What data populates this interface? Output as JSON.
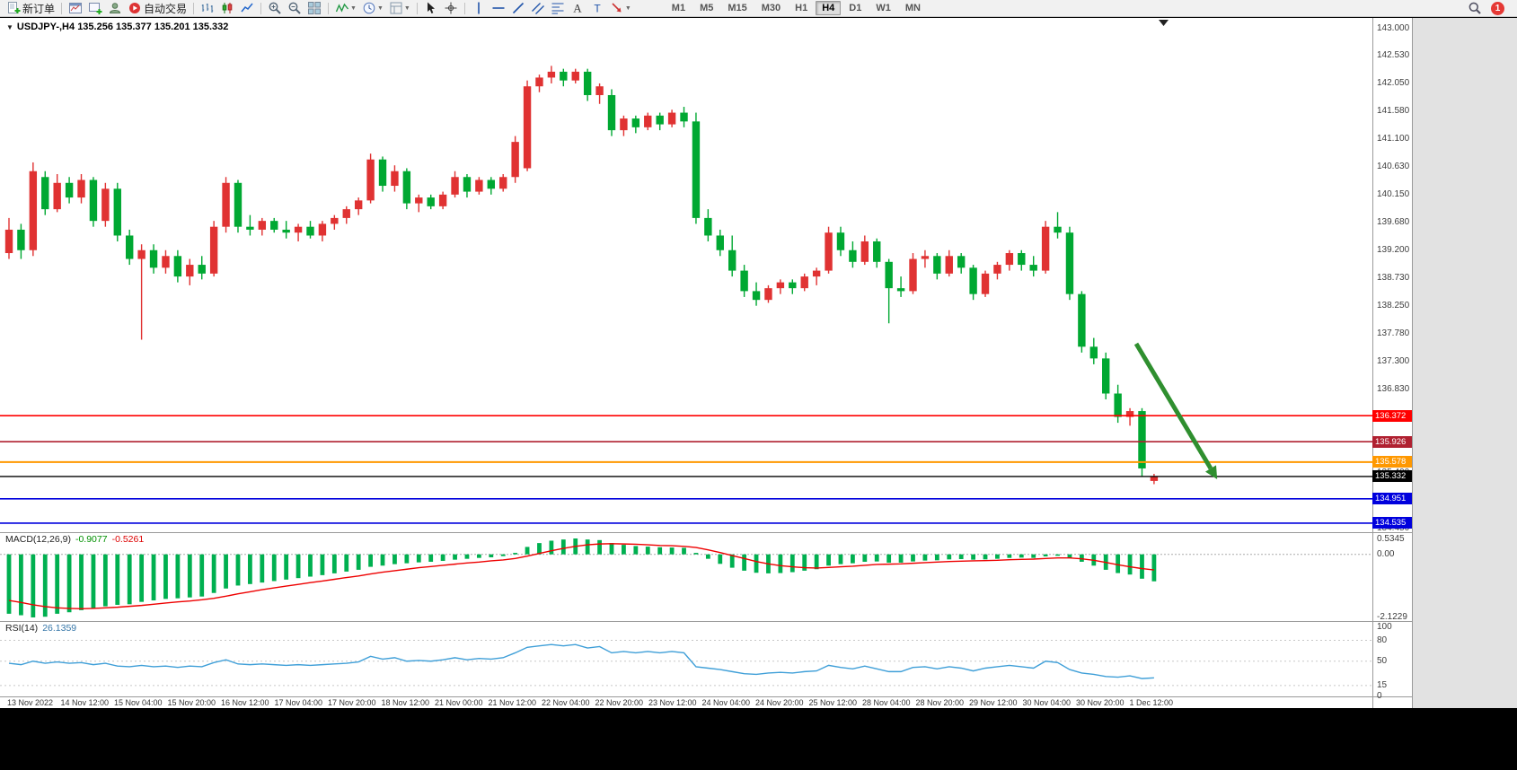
{
  "toolbar": {
    "groups": [
      {
        "items": [
          {
            "name": "new-order-button",
            "icon": "doc-plus",
            "label": "新订单"
          }
        ]
      },
      {
        "items": [
          {
            "name": "charts-button",
            "icon": "chart-window"
          },
          {
            "name": "new-chart-button",
            "icon": "chart-plus"
          },
          {
            "name": "profiles-button",
            "icon": "profile"
          },
          {
            "name": "autotrading-button",
            "icon": "play-red",
            "label": "自动交易"
          }
        ]
      },
      {
        "items": [
          {
            "name": "bar-chart-button",
            "icon": "bars"
          },
          {
            "name": "candlestick-chart-button",
            "icon": "candles"
          },
          {
            "name": "line-chart-button",
            "icon": "linechart"
          }
        ]
      },
      {
        "items": [
          {
            "name": "zoom-in-button",
            "icon": "zoom-in"
          },
          {
            "name": "zoom-out-button",
            "icon": "zoom-out"
          },
          {
            "name": "tile-windows-button",
            "icon": "tile"
          }
        ]
      },
      {
        "items": [
          {
            "name": "indicators-button",
            "icon": "indicator",
            "dropdown": true
          },
          {
            "name": "periods-button",
            "icon": "clock",
            "dropdown": true
          },
          {
            "name": "templates-button",
            "icon": "template",
            "dropdown": true
          }
        ]
      },
      {
        "items": [
          {
            "name": "cursor-button",
            "icon": "cursor"
          },
          {
            "name": "crosshair-button",
            "icon": "crosshair"
          }
        ]
      },
      {
        "items": [
          {
            "name": "vertical-line-button",
            "icon": "vline"
          },
          {
            "name": "horizontal-line-button",
            "icon": "hline"
          },
          {
            "name": "trendline-button",
            "icon": "tline"
          },
          {
            "name": "equidistant-channel-button",
            "icon": "channel"
          },
          {
            "name": "fibonacci-button",
            "icon": "fibo"
          },
          {
            "name": "text-button",
            "icon": "textA"
          },
          {
            "name": "text-label-button",
            "icon": "textT"
          },
          {
            "name": "arrows-button",
            "icon": "arrow-obj",
            "dropdown": true
          }
        ]
      }
    ],
    "timeframes": [
      "M1",
      "M5",
      "M15",
      "M30",
      "H1",
      "H4",
      "D1",
      "W1",
      "MN"
    ],
    "active_timeframe": "H4",
    "notification_count": "1"
  },
  "chart": {
    "title_symbol": "USDJPY-,H4",
    "title_ohlc": "135.256 135.377 135.201 135.332"
  },
  "indicator_labels": {
    "macd_name": "MACD(12,26,9)",
    "macd_v1": "-0.9077",
    "macd_v2": "-0.5261",
    "rsi_name": "RSI(14)",
    "rsi_v": "26.1359"
  },
  "chart_data": {
    "type": "candlestick",
    "symbol": "USDJPY-",
    "timeframe": "H4",
    "ohlc_display": {
      "open": "135.256",
      "high": "135.377",
      "low": "135.201",
      "close": "135.332"
    },
    "up_color": "#e03232",
    "down_color": "#00a832",
    "price_axis_labels": [
      "143.000",
      "142.530",
      "142.050",
      "141.580",
      "141.100",
      "140.630",
      "140.150",
      "139.680",
      "139.200",
      "138.730",
      "138.250",
      "137.780",
      "137.300",
      "136.830",
      "136.350",
      "135.880",
      "135.400",
      "134.930",
      "134.450"
    ],
    "time_labels": [
      "13 Nov 2022",
      "14 Nov 12:00",
      "15 Nov 04:00",
      "15 Nov 20:00",
      "16 Nov 12:00",
      "17 Nov 04:00",
      "17 Nov 20:00",
      "18 Nov 12:00",
      "21 Nov 00:00",
      "21 Nov 12:00",
      "22 Nov 04:00",
      "22 Nov 20:00",
      "23 Nov 12:00",
      "24 Nov 04:00",
      "24 Nov 20:00",
      "25 Nov 12:00",
      "28 Nov 04:00",
      "28 Nov 20:00",
      "29 Nov 12:00",
      "30 Nov 04:00",
      "30 Nov 20:00",
      "1 Dec 12:00"
    ],
    "horizontal_lines": [
      {
        "price": 136.372,
        "color": "#ff0000",
        "label": "136.372",
        "width": 1.6
      },
      {
        "price": 135.926,
        "color": "#b02030",
        "label": "135.926",
        "width": 1.6
      },
      {
        "price": 135.578,
        "color": "#ff9800",
        "label": "135.578",
        "width": 2
      },
      {
        "price": 135.332,
        "color": "#000000",
        "label": "135.332",
        "width": 1.4
      },
      {
        "price": 134.951,
        "color": "#0000dd",
        "label": "134.951",
        "width": 1.6
      },
      {
        "price": 134.535,
        "color": "#0000dd",
        "label": "134.535",
        "width": 1.6
      }
    ],
    "candles": [
      [
        139.15,
        139.75,
        139.05,
        139.55
      ],
      [
        139.55,
        139.65,
        139.05,
        139.2
      ],
      [
        139.2,
        140.7,
        139.1,
        140.55
      ],
      [
        140.45,
        140.55,
        139.8,
        139.9
      ],
      [
        139.9,
        140.5,
        139.85,
        140.35
      ],
      [
        140.35,
        140.45,
        140.0,
        140.1
      ],
      [
        140.1,
        140.5,
        140.0,
        140.4
      ],
      [
        140.4,
        140.45,
        139.6,
        139.7
      ],
      [
        139.7,
        140.35,
        139.6,
        140.25
      ],
      [
        140.25,
        140.35,
        139.35,
        139.45
      ],
      [
        139.45,
        139.55,
        138.95,
        139.05
      ],
      [
        139.05,
        139.3,
        137.67,
        139.2
      ],
      [
        139.2,
        139.3,
        138.8,
        138.9
      ],
      [
        138.9,
        139.2,
        138.8,
        139.1
      ],
      [
        139.1,
        139.2,
        138.65,
        138.75
      ],
      [
        138.75,
        139.05,
        138.6,
        138.95
      ],
      [
        138.95,
        139.1,
        138.7,
        138.8
      ],
      [
        138.8,
        139.7,
        138.75,
        139.6
      ],
      [
        139.6,
        140.45,
        139.5,
        140.35
      ],
      [
        140.35,
        140.4,
        139.5,
        139.6
      ],
      [
        139.6,
        139.8,
        139.45,
        139.55
      ],
      [
        139.55,
        139.75,
        139.45,
        139.7
      ],
      [
        139.7,
        139.75,
        139.5,
        139.55
      ],
      [
        139.55,
        139.7,
        139.4,
        139.5
      ],
      [
        139.5,
        139.65,
        139.35,
        139.6
      ],
      [
        139.6,
        139.7,
        139.4,
        139.45
      ],
      [
        139.45,
        139.7,
        139.35,
        139.65
      ],
      [
        139.65,
        139.8,
        139.55,
        139.75
      ],
      [
        139.75,
        139.95,
        139.65,
        139.9
      ],
      [
        139.9,
        140.1,
        139.8,
        140.05
      ],
      [
        140.05,
        140.85,
        140.0,
        140.75
      ],
      [
        140.75,
        140.8,
        140.2,
        140.3
      ],
      [
        140.3,
        140.65,
        140.2,
        140.55
      ],
      [
        140.55,
        140.6,
        139.9,
        140.0
      ],
      [
        140.0,
        140.15,
        139.85,
        140.1
      ],
      [
        140.1,
        140.15,
        139.9,
        139.95
      ],
      [
        139.95,
        140.2,
        139.9,
        140.15
      ],
      [
        140.15,
        140.55,
        140.1,
        140.45
      ],
      [
        140.45,
        140.5,
        140.1,
        140.2
      ],
      [
        140.2,
        140.45,
        140.15,
        140.4
      ],
      [
        140.4,
        140.45,
        140.15,
        140.25
      ],
      [
        140.25,
        140.5,
        140.2,
        140.45
      ],
      [
        140.45,
        141.15,
        140.35,
        141.05
      ],
      [
        140.6,
        142.1,
        140.55,
        142.0
      ],
      [
        142.0,
        142.2,
        141.9,
        142.15
      ],
      [
        142.15,
        142.35,
        142.05,
        142.25
      ],
      [
        142.25,
        142.3,
        142.0,
        142.1
      ],
      [
        142.1,
        142.3,
        142.05,
        142.25
      ],
      [
        142.25,
        142.3,
        141.75,
        141.85
      ],
      [
        141.85,
        142.05,
        141.7,
        142.0
      ],
      [
        141.85,
        141.95,
        141.15,
        141.25
      ],
      [
        141.25,
        141.5,
        141.15,
        141.45
      ],
      [
        141.45,
        141.5,
        141.2,
        141.3
      ],
      [
        141.3,
        141.55,
        141.25,
        141.5
      ],
      [
        141.5,
        141.55,
        141.25,
        141.35
      ],
      [
        141.35,
        141.6,
        141.3,
        141.55
      ],
      [
        141.55,
        141.65,
        141.3,
        141.4
      ],
      [
        141.4,
        141.55,
        139.65,
        139.75
      ],
      [
        139.75,
        139.9,
        139.35,
        139.45
      ],
      [
        139.45,
        139.55,
        139.1,
        139.2
      ],
      [
        139.2,
        139.45,
        138.75,
        138.85
      ],
      [
        138.85,
        138.95,
        138.4,
        138.5
      ],
      [
        138.5,
        138.65,
        138.25,
        138.35
      ],
      [
        138.35,
        138.6,
        138.3,
        138.55
      ],
      [
        138.55,
        138.7,
        138.45,
        138.65
      ],
      [
        138.65,
        138.7,
        138.45,
        138.55
      ],
      [
        138.55,
        138.8,
        138.5,
        138.75
      ],
      [
        138.75,
        138.9,
        138.6,
        138.85
      ],
      [
        138.85,
        139.6,
        138.8,
        139.5
      ],
      [
        139.5,
        139.6,
        139.1,
        139.2
      ],
      [
        139.2,
        139.35,
        138.9,
        139.0
      ],
      [
        139.0,
        139.45,
        138.95,
        139.35
      ],
      [
        139.35,
        139.4,
        138.9,
        139.0
      ],
      [
        139.0,
        139.05,
        137.95,
        138.55
      ],
      [
        138.55,
        138.75,
        138.4,
        138.5
      ],
      [
        138.5,
        139.15,
        138.45,
        139.05
      ],
      [
        139.05,
        139.2,
        138.9,
        139.1
      ],
      [
        139.1,
        139.15,
        138.7,
        138.8
      ],
      [
        138.8,
        139.2,
        138.75,
        139.1
      ],
      [
        139.1,
        139.15,
        138.8,
        138.9
      ],
      [
        138.9,
        138.95,
        138.35,
        138.45
      ],
      [
        138.45,
        138.85,
        138.4,
        138.8
      ],
      [
        138.8,
        139.0,
        138.7,
        138.95
      ],
      [
        138.95,
        139.2,
        138.85,
        139.15
      ],
      [
        139.15,
        139.2,
        138.85,
        138.95
      ],
      [
        138.95,
        139.1,
        138.75,
        138.85
      ],
      [
        138.85,
        139.7,
        138.8,
        139.6
      ],
      [
        139.6,
        139.85,
        139.4,
        139.5
      ],
      [
        139.5,
        139.6,
        138.35,
        138.45
      ],
      [
        138.45,
        138.5,
        137.45,
        137.55
      ],
      [
        137.55,
        137.7,
        137.25,
        137.35
      ],
      [
        137.35,
        137.45,
        136.65,
        136.75
      ],
      [
        136.75,
        136.9,
        136.25,
        136.35
      ],
      [
        136.35,
        136.5,
        136.2,
        136.45
      ],
      [
        136.45,
        136.5,
        135.33,
        135.47
      ],
      [
        135.256,
        135.377,
        135.201,
        135.332
      ]
    ],
    "indicators": [
      {
        "name": "MACD",
        "params": "12,26,9",
        "value_labels": [
          "-0.9077",
          "-0.5261"
        ],
        "axis_labels": [
          {
            "v": 0.5345,
            "t": "0.5345"
          },
          {
            "v": 0.0,
            "t": "0.00"
          },
          {
            "v": -2.1229,
            "t": "-2.1229"
          }
        ],
        "histogram_color": "#00b050",
        "signal_color": "#ee0000",
        "histogram": [
          -2.0,
          -2.05,
          -2.1229,
          -2.1,
          -2.0,
          -1.95,
          -1.88,
          -1.82,
          -1.75,
          -1.7,
          -1.68,
          -1.6,
          -1.55,
          -1.5,
          -1.48,
          -1.45,
          -1.42,
          -1.3,
          -1.15,
          -1.05,
          -1.0,
          -0.95,
          -0.9,
          -0.85,
          -0.8,
          -0.75,
          -0.7,
          -0.64,
          -0.58,
          -0.52,
          -0.42,
          -0.38,
          -0.33,
          -0.3,
          -0.27,
          -0.25,
          -0.22,
          -0.18,
          -0.15,
          -0.12,
          -0.1,
          -0.06,
          0.05,
          0.25,
          0.38,
          0.46,
          0.5,
          0.5345,
          0.5,
          0.48,
          0.38,
          0.32,
          0.28,
          0.26,
          0.24,
          0.23,
          0.22,
          0.05,
          -0.15,
          -0.32,
          -0.45,
          -0.55,
          -0.62,
          -0.64,
          -0.63,
          -0.6,
          -0.55,
          -0.5,
          -0.38,
          -0.33,
          -0.3,
          -0.25,
          -0.24,
          -0.28,
          -0.28,
          -0.24,
          -0.21,
          -0.2,
          -0.17,
          -0.16,
          -0.18,
          -0.17,
          -0.15,
          -0.12,
          -0.11,
          -0.12,
          -0.07,
          -0.05,
          -0.12,
          -0.25,
          -0.38,
          -0.52,
          -0.63,
          -0.68,
          -0.82,
          -0.9077
        ],
        "signal": [
          -1.55,
          -1.62,
          -1.7,
          -1.76,
          -1.8,
          -1.82,
          -1.83,
          -1.82,
          -1.8,
          -1.78,
          -1.75,
          -1.72,
          -1.68,
          -1.64,
          -1.6,
          -1.57,
          -1.53,
          -1.48,
          -1.41,
          -1.33,
          -1.26,
          -1.19,
          -1.13,
          -1.07,
          -1.01,
          -0.95,
          -0.9,
          -0.84,
          -0.78,
          -0.73,
          -0.66,
          -0.6,
          -0.55,
          -0.5,
          -0.45,
          -0.41,
          -0.37,
          -0.33,
          -0.29,
          -0.26,
          -0.22,
          -0.19,
          -0.14,
          -0.06,
          0.03,
          0.12,
          0.2,
          0.27,
          0.32,
          0.35,
          0.36,
          0.35,
          0.34,
          0.32,
          0.3,
          0.29,
          0.27,
          0.23,
          0.15,
          0.06,
          -0.04,
          -0.14,
          -0.24,
          -0.32,
          -0.38,
          -0.42,
          -0.45,
          -0.46,
          -0.44,
          -0.42,
          -0.4,
          -0.37,
          -0.34,
          -0.33,
          -0.32,
          -0.3,
          -0.28,
          -0.26,
          -0.24,
          -0.23,
          -0.22,
          -0.21,
          -0.2,
          -0.18,
          -0.17,
          -0.16,
          -0.14,
          -0.12,
          -0.12,
          -0.15,
          -0.2,
          -0.27,
          -0.35,
          -0.42,
          -0.48,
          -0.5261
        ]
      },
      {
        "name": "RSI",
        "params": "14",
        "value_label": "26.1359",
        "axis_labels": [
          {
            "v": 100,
            "t": "100"
          },
          {
            "v": 80,
            "t": "80"
          },
          {
            "v": 50,
            "t": "50"
          },
          {
            "v": 15,
            "t": "15"
          },
          {
            "v": 0,
            "t": "0"
          }
        ],
        "levels": [
          80,
          50,
          15
        ],
        "line_color": "#3f9fd8",
        "values": [
          47,
          45,
          50,
          47,
          49,
          47,
          48,
          45,
          47,
          43,
          42,
          44,
          42,
          43,
          41,
          43,
          42,
          48,
          52,
          46,
          45,
          46,
          45,
          44,
          45,
          44,
          45,
          46,
          47,
          49,
          57,
          53,
          55,
          50,
          51,
          50,
          52,
          55,
          52,
          54,
          53,
          55,
          62,
          70,
          72,
          74,
          72,
          74,
          69,
          71,
          62,
          64,
          62,
          64,
          62,
          64,
          62,
          42,
          40,
          38,
          35,
          32,
          31,
          33,
          34,
          33,
          35,
          36,
          44,
          41,
          39,
          43,
          39,
          35,
          35,
          41,
          42,
          39,
          42,
          40,
          36,
          40,
          42,
          44,
          42,
          40,
          50,
          48,
          38,
          33,
          31,
          28,
          27,
          29,
          25,
          26.1
        ]
      }
    ],
    "annotation_arrow": {
      "from": [
        1265,
        383
      ],
      "to": [
        1348,
        522
      ],
      "color": "#2f8f2f"
    }
  }
}
